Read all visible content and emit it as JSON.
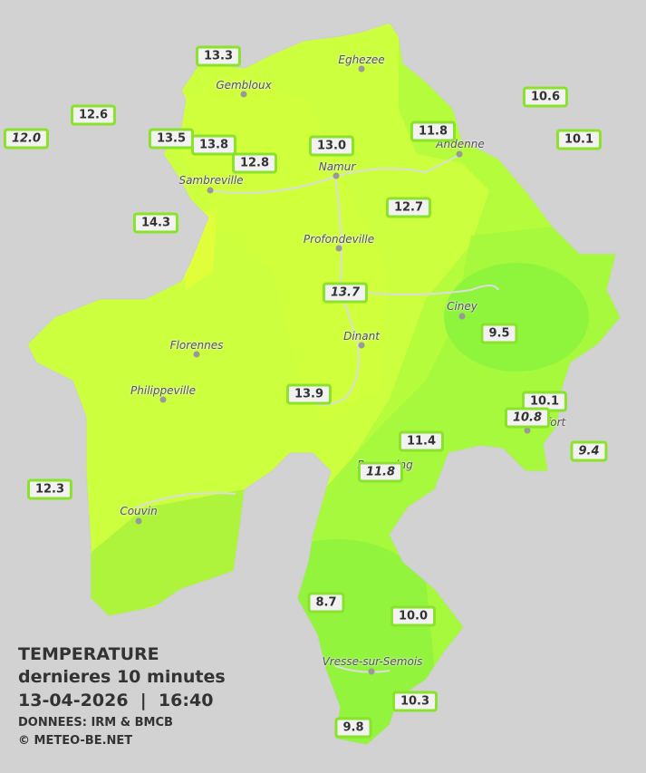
{
  "header": {
    "title": "TEMPERATURE",
    "subtitle": "dernieres 10 minutes",
    "datetime": "13-04-2026  |  16:40",
    "source": "DONNEES: IRM & BMCB",
    "credit": "© METEO-BE.NET"
  },
  "towns": [
    {
      "label": "Eghezee"
    },
    {
      "label": "Gembloux"
    },
    {
      "label": "Andenne"
    },
    {
      "label": "Namur"
    },
    {
      "label": "Sambreville"
    },
    {
      "label": "Profondeville"
    },
    {
      "label": "Ciney"
    },
    {
      "label": "Dinant"
    },
    {
      "label": "Florennes"
    },
    {
      "label": "Philippeville"
    },
    {
      "label": "Rochefort"
    },
    {
      "label": "Beauraing"
    },
    {
      "label": "Couvin"
    },
    {
      "label": "Vresse-sur-Semois"
    }
  ],
  "stations": [
    {
      "label": "13.3"
    },
    {
      "label": "12.6"
    },
    {
      "label": "12.0",
      "italic": true
    },
    {
      "label": "13.5"
    },
    {
      "label": "13.8"
    },
    {
      "label": "12.8"
    },
    {
      "label": "13.0"
    },
    {
      "label": "11.8"
    },
    {
      "label": "10.6"
    },
    {
      "label": "10.1"
    },
    {
      "label": "14.3"
    },
    {
      "label": "12.7"
    },
    {
      "label": "13.7",
      "italic": true
    },
    {
      "label": "9.5"
    },
    {
      "label": "13.9"
    },
    {
      "label": "10.1"
    },
    {
      "label": "11.4"
    },
    {
      "label": "11.8",
      "italic": true
    },
    {
      "label": "9.4",
      "italic": true
    },
    {
      "label": "12.3"
    },
    {
      "label": "8.7"
    },
    {
      "label": "10.0"
    },
    {
      "label": "10.3"
    },
    {
      "label": "9.8"
    },
    {
      "label": "10.8",
      "italic": true
    }
  ]
}
